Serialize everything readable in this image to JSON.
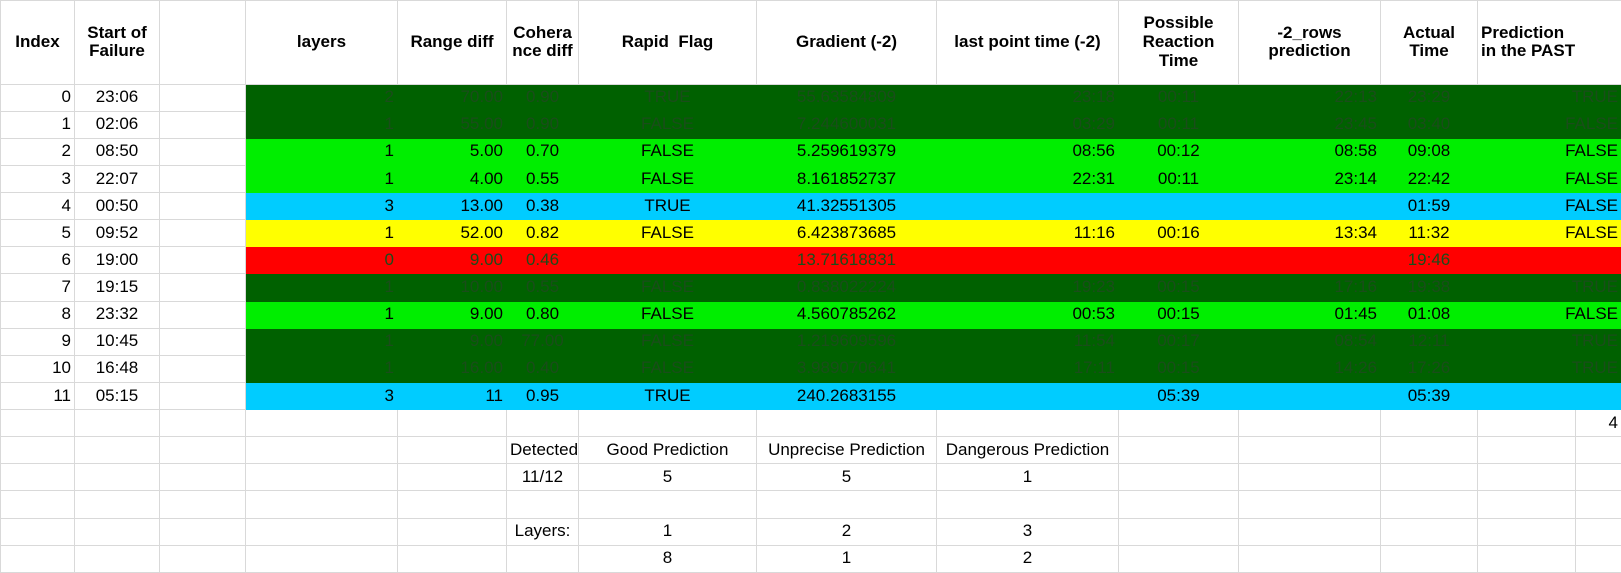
{
  "headers": [
    "Index",
    "Start of Failure",
    "",
    "layers",
    "Range diff",
    "Coherance diff",
    "Rapid  Flag",
    "Gradient (-2)",
    "last point time (-2)",
    "Possible Reaction Time",
    "-2_rows prediction",
    "Actual Time",
    "Prediction in the PAST"
  ],
  "header_lines": {
    "start": [
      "Start of",
      "Failure"
    ],
    "coherance": [
      "Cohera",
      "nce diff"
    ],
    "reaction": [
      "Possible",
      "Reaction",
      "Time"
    ],
    "rows_pred": [
      "-2_rows",
      "prediction"
    ],
    "actual": [
      "Actual",
      "Time"
    ],
    "past": [
      "Prediction",
      "in the PAST"
    ]
  },
  "rows": [
    {
      "index": "0",
      "start": "23:06",
      "layers": "2",
      "range": "70.00",
      "coh": "0.90",
      "flag": "TRUE",
      "grad": "55.63584809",
      "last": "23:18",
      "react": "00:11",
      "pred": "22:13",
      "actual": "23:29",
      "past": "TRUE",
      "color": "darkgreen"
    },
    {
      "index": "1",
      "start": "02:06",
      "layers": "1",
      "range": "55.00",
      "coh": "0.90",
      "flag": "FALSE",
      "grad": "7.244600031",
      "last": "03:29",
      "react": "00:11",
      "pred": "23:45",
      "actual": "03:40",
      "past": "FALSE",
      "color": "darkgreen"
    },
    {
      "index": "2",
      "start": "08:50",
      "layers": "1",
      "range": "5.00",
      "coh": "0.70",
      "flag": "FALSE",
      "grad": "5.259619379",
      "last": "08:56",
      "react": "00:12",
      "pred": "08:58",
      "actual": "09:08",
      "past": "FALSE",
      "color": "lightgreen"
    },
    {
      "index": "3",
      "start": "22:07",
      "layers": "1",
      "range": "4.00",
      "coh": "0.55",
      "flag": "FALSE",
      "grad": "8.161852737",
      "last": "22:31",
      "react": "00:11",
      "pred": "23:14",
      "actual": "22:42",
      "past": "FALSE",
      "color": "lightgreen"
    },
    {
      "index": "4",
      "start": "00:50",
      "layers": "3",
      "range": "13.00",
      "coh": "0.38",
      "flag": "TRUE",
      "grad": "41.32551305",
      "last": "",
      "react": "",
      "pred": "",
      "actual": "01:59",
      "past": "FALSE",
      "color": "cyan"
    },
    {
      "index": "5",
      "start": "09:52",
      "layers": "1",
      "range": "52.00",
      "coh": "0.82",
      "flag": "FALSE",
      "grad": "6.423873685",
      "last": "11:16",
      "react": "00:16",
      "pred": "13:34",
      "actual": "11:32",
      "past": "FALSE",
      "color": "yellow"
    },
    {
      "index": "6",
      "start": "19:00",
      "layers": "0",
      "range": "9.00",
      "coh": "0.46",
      "flag": "",
      "grad": "13.71618831",
      "last": "",
      "react": "",
      "pred": "",
      "actual": "19:46",
      "past": "",
      "color": "red"
    },
    {
      "index": "7",
      "start": "19:15",
      "layers": "1",
      "range": "10.00",
      "coh": "0.55",
      "flag": "FALSE",
      "grad": "0.838022224",
      "last": "19:23",
      "react": "00:15",
      "pred": "17:16",
      "actual": "19:38",
      "past": "TRUE",
      "color": "darkgreen"
    },
    {
      "index": "8",
      "start": "23:32",
      "layers": "1",
      "range": "9.00",
      "coh": "0.80",
      "flag": "FALSE",
      "grad": "4.560785262",
      "last": "00:53",
      "react": "00:15",
      "pred": "01:45",
      "actual": "01:08",
      "past": "FALSE",
      "color": "lightgreen"
    },
    {
      "index": "9",
      "start": "10:45",
      "layers": "1",
      "range": "9.00",
      "coh": "77.00",
      "flag": "FALSE",
      "grad": "1.219609596",
      "last": "11:54",
      "react": "00:17",
      "pred": "08:54",
      "actual": "12:11",
      "past": "TRUE",
      "color": "darkgreen"
    },
    {
      "index": "10",
      "start": "16:48",
      "layers": "1",
      "range": "16.00",
      "coh": "0.40",
      "flag": "FALSE",
      "grad": "3.989070641",
      "last": "17:11",
      "react": "00:15",
      "pred": "14:26",
      "actual": "17:26",
      "past": "TRUE",
      "color": "darkgreen"
    },
    {
      "index": "11",
      "start": "05:15",
      "layers": "3",
      "range": "11",
      "coh": "0.95",
      "flag": "TRUE",
      "grad": "240.2683155",
      "last": "",
      "react": "05:39",
      "pred": "",
      "actual": "05:39",
      "past": "",
      "color": "cyan"
    }
  ],
  "count_cell": "4",
  "summary": {
    "detected_label": "Detected",
    "good_label": "Good Prediction",
    "unprecise_label": "Unprecise Prediction",
    "dangerous_label": "Dangerous Prediction",
    "detected_value": "11/12",
    "good_value": "5",
    "unprecise_value": "5",
    "dangerous_value": "1",
    "layers_label": "Layers:",
    "layers_heads": [
      "1",
      "2",
      "3"
    ],
    "layers_counts": [
      "8",
      "1",
      "2"
    ]
  },
  "colors": {
    "darkgreen": "#006100",
    "lightgreen": "#00ee00",
    "cyan": "#00ccff",
    "yellow": "#ffff00",
    "red": "#ff0000"
  }
}
